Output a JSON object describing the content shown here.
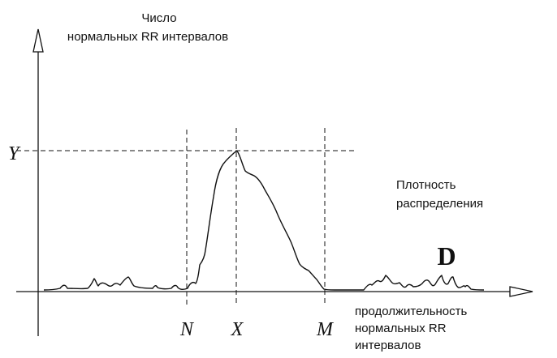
{
  "y_axis_label": [
    "Число",
    "нормальных RR интервалов"
  ],
  "x_axis_label": [
    "продолжительность",
    "нормальных RR",
    "интервалов"
  ],
  "density_label": [
    "Плотность",
    "распределения"
  ],
  "markers": {
    "y": "Y",
    "n": "N",
    "x": "X",
    "m": "M",
    "d": "D"
  },
  "colors": {
    "line": "#111111",
    "background": "#ffffff"
  }
}
